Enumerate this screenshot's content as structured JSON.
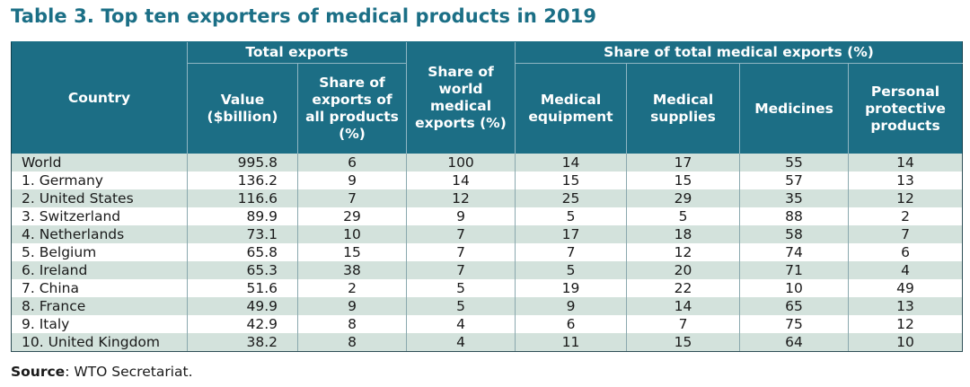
{
  "title": "Table 3. Top ten exporters of medical products in 2019",
  "headers": {
    "country": "Country",
    "total_exports_group": "Total exports",
    "share_total_medical_group": "Share of total medical exports (%)",
    "value": "Value ($billion)",
    "share_all_products": "Share of exports of all products (%)",
    "share_world_medical": "Share of world medical exports (%)",
    "medical_equipment": "Medical equipment",
    "medical_supplies": "Medical supplies",
    "medicines": "Medicines",
    "ppe": "Personal protective products"
  },
  "rows": [
    {
      "country": "World",
      "value": "995.8",
      "share_all": "6",
      "share_world": "100",
      "equipment": "14",
      "supplies": "17",
      "medicines": "55",
      "ppe": "14"
    },
    {
      "country": "1. Germany",
      "value": "136.2",
      "share_all": "9",
      "share_world": "14",
      "equipment": "15",
      "supplies": "15",
      "medicines": "57",
      "ppe": "13"
    },
    {
      "country": "2. United States",
      "value": "116.6",
      "share_all": "7",
      "share_world": "12",
      "equipment": "25",
      "supplies": "29",
      "medicines": "35",
      "ppe": "12"
    },
    {
      "country": "3. Switzerland",
      "value": "89.9",
      "share_all": "29",
      "share_world": "9",
      "equipment": "5",
      "supplies": "5",
      "medicines": "88",
      "ppe": "2"
    },
    {
      "country": "4. Netherlands",
      "value": "73.1",
      "share_all": "10",
      "share_world": "7",
      "equipment": "17",
      "supplies": "18",
      "medicines": "58",
      "ppe": "7"
    },
    {
      "country": "5. Belgium",
      "value": "65.8",
      "share_all": "15",
      "share_world": "7",
      "equipment": "7",
      "supplies": "12",
      "medicines": "74",
      "ppe": "6"
    },
    {
      "country": "6. Ireland",
      "value": "65.3",
      "share_all": "38",
      "share_world": "7",
      "equipment": "5",
      "supplies": "20",
      "medicines": "71",
      "ppe": "4"
    },
    {
      "country": "7. China",
      "value": "51.6",
      "share_all": "2",
      "share_world": "5",
      "equipment": "19",
      "supplies": "22",
      "medicines": "10",
      "ppe": "49"
    },
    {
      "country": "8. France",
      "value": "49.9",
      "share_all": "9",
      "share_world": "5",
      "equipment": "9",
      "supplies": "14",
      "medicines": "65",
      "ppe": "13"
    },
    {
      "country": "9. Italy",
      "value": "42.9",
      "share_all": "8",
      "share_world": "4",
      "equipment": "6",
      "supplies": "7",
      "medicines": "75",
      "ppe": "12"
    },
    {
      "country": "10. United Kingdom",
      "value": "38.2",
      "share_all": "8",
      "share_world": "4",
      "equipment": "11",
      "supplies": "15",
      "medicines": "64",
      "ppe": "10"
    }
  ],
  "source": {
    "label": "Source",
    "text": ": WTO Secretariat."
  }
}
